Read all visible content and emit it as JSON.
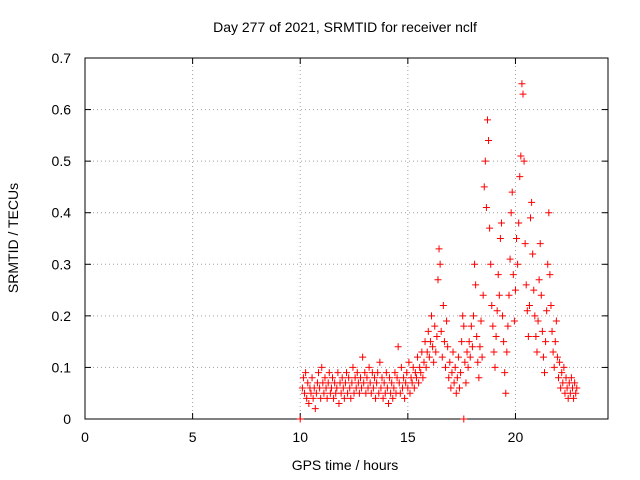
{
  "chart_data": {
    "type": "scatter",
    "title": "Day 277 of 2021, SRMTID for receiver nclf",
    "xlabel": "GPS time / hours",
    "ylabel": "SRMTID / TECUs",
    "xlim": [
      0,
      24.3
    ],
    "ylim": [
      0,
      0.7
    ],
    "xticks": [
      0,
      5,
      10,
      15,
      20
    ],
    "xtick_labels": [
      "0",
      "5",
      "10",
      "15",
      "20"
    ],
    "yticks": [
      0,
      0.1,
      0.2,
      0.3,
      0.4,
      0.5,
      0.6,
      0.7
    ],
    "ytick_labels": [
      "0",
      "0.1",
      "0.2",
      "0.3",
      "0.4",
      "0.5",
      "0.6",
      "0.7"
    ],
    "grid": true,
    "marker": "plus",
    "color": "#ff0000",
    "series": [
      {
        "name": "SRMTID",
        "points": [
          [
            10.0,
            0.0
          ],
          [
            17.6,
            0.0
          ],
          [
            10.1,
            0.06
          ],
          [
            10.15,
            0.08
          ],
          [
            10.2,
            0.05
          ],
          [
            10.25,
            0.09
          ],
          [
            10.3,
            0.04
          ],
          [
            10.35,
            0.07
          ],
          [
            10.4,
            0.03
          ],
          [
            10.45,
            0.06
          ],
          [
            10.5,
            0.05
          ],
          [
            10.55,
            0.08
          ],
          [
            10.6,
            0.04
          ],
          [
            10.65,
            0.06
          ],
          [
            10.7,
            0.02
          ],
          [
            10.75,
            0.05
          ],
          [
            10.8,
            0.07
          ],
          [
            10.85,
            0.09
          ],
          [
            10.9,
            0.06
          ],
          [
            10.95,
            0.04
          ],
          [
            11.0,
            0.1
          ],
          [
            11.05,
            0.07
          ],
          [
            11.1,
            0.05
          ],
          [
            11.15,
            0.08
          ],
          [
            11.2,
            0.06
          ],
          [
            11.25,
            0.04
          ],
          [
            11.3,
            0.07
          ],
          [
            11.35,
            0.09
          ],
          [
            11.4,
            0.05
          ],
          [
            11.45,
            0.06
          ],
          [
            11.5,
            0.08
          ],
          [
            11.55,
            0.04
          ],
          [
            11.6,
            0.07
          ],
          [
            11.65,
            0.05
          ],
          [
            11.7,
            0.06
          ],
          [
            11.75,
            0.09
          ],
          [
            11.8,
            0.03
          ],
          [
            11.85,
            0.07
          ],
          [
            11.9,
            0.05
          ],
          [
            11.95,
            0.08
          ],
          [
            12.0,
            0.06
          ],
          [
            12.05,
            0.04
          ],
          [
            12.1,
            0.07
          ],
          [
            12.15,
            0.09
          ],
          [
            12.2,
            0.05
          ],
          [
            12.25,
            0.08
          ],
          [
            12.3,
            0.06
          ],
          [
            12.35,
            0.04
          ],
          [
            12.4,
            0.07
          ],
          [
            12.45,
            0.1
          ],
          [
            12.5,
            0.05
          ],
          [
            12.55,
            0.08
          ],
          [
            12.6,
            0.06
          ],
          [
            12.65,
            0.09
          ],
          [
            12.7,
            0.07
          ],
          [
            12.75,
            0.05
          ],
          [
            12.8,
            0.08
          ],
          [
            12.85,
            0.06
          ],
          [
            12.9,
            0.12
          ],
          [
            12.95,
            0.07
          ],
          [
            13.0,
            0.09
          ],
          [
            13.05,
            0.05
          ],
          [
            13.1,
            0.08
          ],
          [
            13.15,
            0.06
          ],
          [
            13.2,
            0.1
          ],
          [
            13.25,
            0.07
          ],
          [
            13.3,
            0.05
          ],
          [
            13.35,
            0.09
          ],
          [
            13.4,
            0.06
          ],
          [
            13.45,
            0.08
          ],
          [
            13.5,
            0.04
          ],
          [
            13.55,
            0.07
          ],
          [
            13.6,
            0.09
          ],
          [
            13.65,
            0.05
          ],
          [
            13.7,
            0.11
          ],
          [
            13.75,
            0.06
          ],
          [
            13.8,
            0.08
          ],
          [
            13.85,
            0.04
          ],
          [
            13.9,
            0.07
          ],
          [
            13.95,
            0.05
          ],
          [
            14.0,
            0.09
          ],
          [
            14.05,
            0.06
          ],
          [
            14.1,
            0.03
          ],
          [
            14.15,
            0.08
          ],
          [
            14.2,
            0.05
          ],
          [
            14.25,
            0.07
          ],
          [
            14.3,
            0.04
          ],
          [
            14.35,
            0.06
          ],
          [
            14.4,
            0.09
          ],
          [
            14.45,
            0.05
          ],
          [
            14.5,
            0.08
          ],
          [
            14.55,
            0.14
          ],
          [
            14.6,
            0.07
          ],
          [
            14.65,
            0.05
          ],
          [
            14.7,
            0.1
          ],
          [
            14.75,
            0.06
          ],
          [
            14.8,
            0.08
          ],
          [
            14.85,
            0.04
          ],
          [
            14.9,
            0.07
          ],
          [
            14.95,
            0.09
          ],
          [
            15.0,
            0.06
          ],
          [
            15.05,
            0.11
          ],
          [
            15.1,
            0.05
          ],
          [
            15.15,
            0.08
          ],
          [
            15.2,
            0.07
          ],
          [
            15.25,
            0.1
          ],
          [
            15.3,
            0.06
          ],
          [
            15.35,
            0.09
          ],
          [
            15.4,
            0.08
          ],
          [
            15.45,
            0.12
          ],
          [
            15.5,
            0.07
          ],
          [
            15.55,
            0.1
          ],
          [
            15.6,
            0.09
          ],
          [
            15.65,
            0.13
          ],
          [
            15.7,
            0.08
          ],
          [
            15.75,
            0.11
          ],
          [
            15.8,
            0.15
          ],
          [
            15.85,
            0.1
          ],
          [
            15.9,
            0.13
          ],
          [
            15.95,
            0.17
          ],
          [
            16.0,
            0.12
          ],
          [
            16.05,
            0.15
          ],
          [
            16.1,
            0.2
          ],
          [
            16.15,
            0.14
          ],
          [
            16.2,
            0.11
          ],
          [
            16.25,
            0.18
          ],
          [
            16.3,
            0.13
          ],
          [
            16.35,
            0.16
          ],
          [
            16.4,
            0.27
          ],
          [
            16.45,
            0.33
          ],
          [
            16.5,
            0.3
          ],
          [
            16.55,
            0.17
          ],
          [
            16.6,
            0.12
          ],
          [
            16.65,
            0.22
          ],
          [
            16.7,
            0.15
          ],
          [
            16.75,
            0.1
          ],
          [
            16.8,
            0.19
          ],
          [
            16.85,
            0.14
          ],
          [
            16.9,
            0.08
          ],
          [
            16.95,
            0.11
          ],
          [
            17.0,
            0.06
          ],
          [
            17.05,
            0.09
          ],
          [
            17.1,
            0.13
          ],
          [
            17.15,
            0.07
          ],
          [
            17.2,
            0.1
          ],
          [
            17.25,
            0.05
          ],
          [
            17.3,
            0.08
          ],
          [
            17.35,
            0.12
          ],
          [
            17.4,
            0.06
          ],
          [
            17.45,
            0.09
          ],
          [
            17.5,
            0.15
          ],
          [
            17.55,
            0.2
          ],
          [
            17.6,
            0.18
          ],
          [
            17.65,
            0.11
          ],
          [
            17.7,
            0.07
          ],
          [
            17.75,
            0.13
          ],
          [
            17.8,
            0.1
          ],
          [
            17.85,
            0.15
          ],
          [
            17.9,
            0.12
          ],
          [
            17.95,
            0.18
          ],
          [
            18.0,
            0.14
          ],
          [
            18.05,
            0.2
          ],
          [
            18.1,
            0.3
          ],
          [
            18.15,
            0.26
          ],
          [
            18.2,
            0.16
          ],
          [
            18.25,
            0.11
          ],
          [
            18.3,
            0.08
          ],
          [
            18.35,
            0.14
          ],
          [
            18.4,
            0.19
          ],
          [
            18.45,
            0.12
          ],
          [
            18.5,
            0.24
          ],
          [
            18.55,
            0.45
          ],
          [
            18.6,
            0.5
          ],
          [
            18.65,
            0.41
          ],
          [
            18.7,
            0.58
          ],
          [
            18.75,
            0.54
          ],
          [
            18.8,
            0.37
          ],
          [
            18.85,
            0.3
          ],
          [
            18.9,
            0.22
          ],
          [
            18.95,
            0.18
          ],
          [
            19.0,
            0.13
          ],
          [
            19.05,
            0.1
          ],
          [
            19.1,
            0.16
          ],
          [
            19.15,
            0.21
          ],
          [
            19.2,
            0.28
          ],
          [
            19.25,
            0.24
          ],
          [
            19.3,
            0.35
          ],
          [
            19.35,
            0.38
          ],
          [
            19.4,
            0.2
          ],
          [
            19.45,
            0.15
          ],
          [
            19.5,
            0.09
          ],
          [
            19.55,
            0.05
          ],
          [
            19.6,
            0.13
          ],
          [
            19.65,
            0.18
          ],
          [
            19.7,
            0.24
          ],
          [
            19.75,
            0.31
          ],
          [
            19.8,
            0.4
          ],
          [
            19.85,
            0.44
          ],
          [
            19.9,
            0.28
          ],
          [
            19.95,
            0.19
          ],
          [
            20.0,
            0.25
          ],
          [
            20.05,
            0.35
          ],
          [
            20.1,
            0.3
          ],
          [
            20.15,
            0.38
          ],
          [
            20.2,
            0.47
          ],
          [
            20.25,
            0.51
          ],
          [
            20.3,
            0.65
          ],
          [
            20.35,
            0.63
          ],
          [
            20.4,
            0.5
          ],
          [
            20.45,
            0.34
          ],
          [
            20.5,
            0.26
          ],
          [
            20.55,
            0.21
          ],
          [
            20.6,
            0.16
          ],
          [
            20.65,
            0.22
          ],
          [
            20.7,
            0.39
          ],
          [
            20.75,
            0.42
          ],
          [
            20.8,
            0.32
          ],
          [
            20.85,
            0.25
          ],
          [
            20.9,
            0.2
          ],
          [
            20.95,
            0.16
          ],
          [
            21.0,
            0.13
          ],
          [
            21.05,
            0.19
          ],
          [
            21.1,
            0.27
          ],
          [
            21.15,
            0.34
          ],
          [
            21.2,
            0.24
          ],
          [
            21.25,
            0.17
          ],
          [
            21.3,
            0.12
          ],
          [
            21.35,
            0.09
          ],
          [
            21.4,
            0.15
          ],
          [
            21.45,
            0.21
          ],
          [
            21.5,
            0.3
          ],
          [
            21.55,
            0.4
          ],
          [
            21.6,
            0.28
          ],
          [
            21.65,
            0.22
          ],
          [
            21.7,
            0.17
          ],
          [
            21.75,
            0.13
          ],
          [
            21.8,
            0.1
          ],
          [
            21.85,
            0.15
          ],
          [
            21.9,
            0.19
          ],
          [
            21.95,
            0.12
          ],
          [
            22.0,
            0.08
          ],
          [
            22.05,
            0.11
          ],
          [
            22.1,
            0.06
          ],
          [
            22.15,
            0.09
          ],
          [
            22.2,
            0.07
          ],
          [
            22.25,
            0.1
          ],
          [
            22.3,
            0.05
          ],
          [
            22.35,
            0.08
          ],
          [
            22.4,
            0.06
          ],
          [
            22.45,
            0.04
          ],
          [
            22.5,
            0.07
          ],
          [
            22.55,
            0.05
          ],
          [
            22.6,
            0.08
          ],
          [
            22.65,
            0.06
          ],
          [
            22.7,
            0.04
          ],
          [
            22.75,
            0.07
          ],
          [
            22.8,
            0.05
          ],
          [
            22.85,
            0.06
          ]
        ]
      }
    ]
  }
}
